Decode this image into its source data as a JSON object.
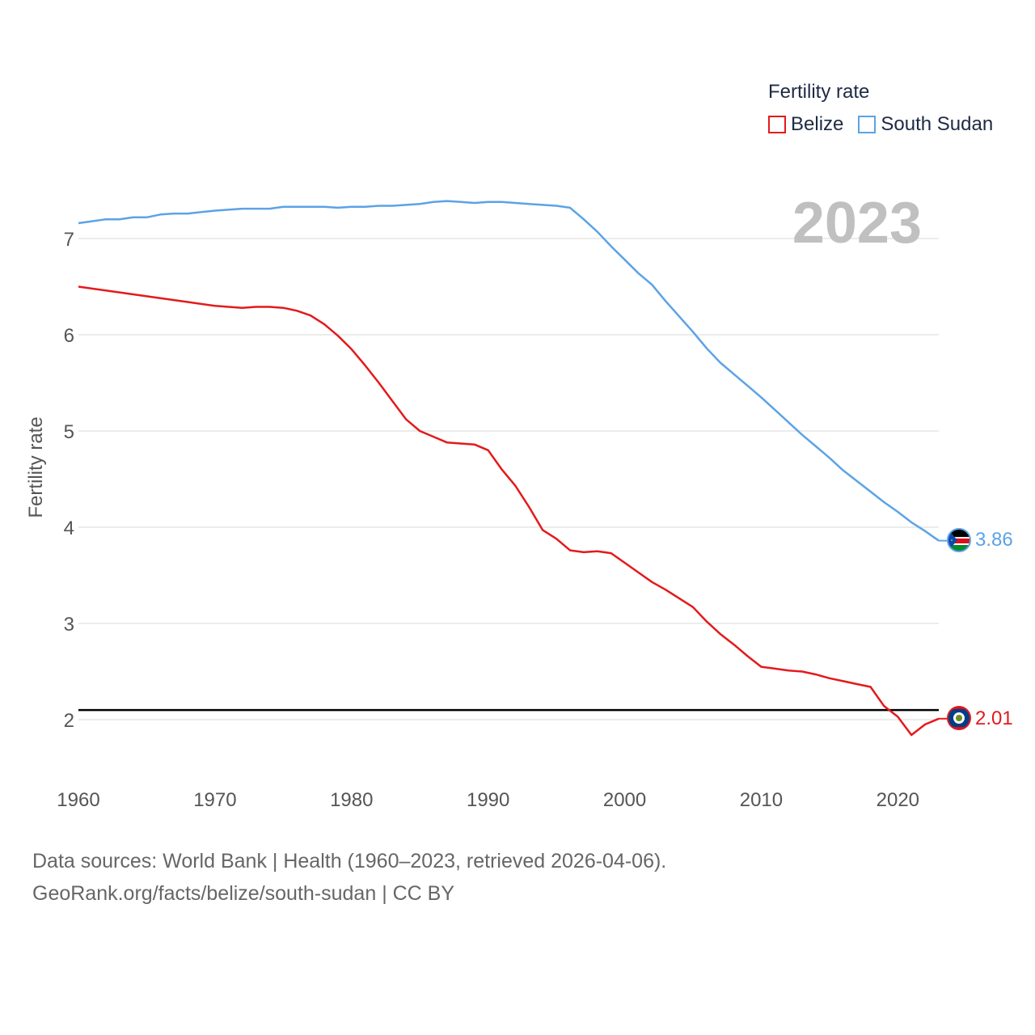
{
  "chart_data": {
    "type": "line",
    "ylabel": "Fertility rate",
    "xlim": [
      1960,
      2023
    ],
    "ylim": [
      1.5,
      7.5
    ],
    "y_ticks": [
      2,
      3,
      4,
      5,
      6,
      7
    ],
    "x_ticks": [
      1960,
      1970,
      1980,
      1990,
      2000,
      2010,
      2020
    ],
    "year_display": "2023",
    "reference_line": {
      "value": 2.1,
      "color": "#000000"
    },
    "legend": {
      "title": "Fertility rate",
      "position": "top-right"
    },
    "series": [
      {
        "name": "Belize",
        "color": "#e31a1c",
        "end_label": "2.01",
        "x": [
          1960,
          1962,
          1964,
          1966,
          1968,
          1970,
          1972,
          1973,
          1974,
          1975,
          1976,
          1977,
          1978,
          1979,
          1980,
          1981,
          1982,
          1983,
          1984,
          1985,
          1986,
          1987,
          1988,
          1989,
          1990,
          1991,
          1992,
          1993,
          1994,
          1995,
          1996,
          1997,
          1998,
          1999,
          2000,
          2001,
          2002,
          2003,
          2004,
          2005,
          2006,
          2007,
          2008,
          2009,
          2010,
          2011,
          2012,
          2013,
          2014,
          2015,
          2016,
          2017,
          2018,
          2019,
          2020,
          2021,
          2022,
          2023
        ],
        "values": [
          6.5,
          6.46,
          6.42,
          6.38,
          6.34,
          6.3,
          6.28,
          6.29,
          6.29,
          6.28,
          6.25,
          6.2,
          6.11,
          5.99,
          5.85,
          5.68,
          5.5,
          5.31,
          5.12,
          5.0,
          4.94,
          4.88,
          4.87,
          4.86,
          4.8,
          4.6,
          4.43,
          4.21,
          3.97,
          3.88,
          3.76,
          3.74,
          3.75,
          3.73,
          3.63,
          3.53,
          3.43,
          3.35,
          3.26,
          3.17,
          3.02,
          2.89,
          2.78,
          2.66,
          2.55,
          2.53,
          2.51,
          2.5,
          2.47,
          2.43,
          2.4,
          2.37,
          2.34,
          2.14,
          2.03,
          1.84,
          1.95,
          2.01
        ]
      },
      {
        "name": "South Sudan",
        "color": "#5ba3e6",
        "end_label": "3.86",
        "x": [
          1960,
          1962,
          1963,
          1964,
          1965,
          1966,
          1967,
          1968,
          1970,
          1972,
          1974,
          1975,
          1976,
          1978,
          1979,
          1980,
          1981,
          1982,
          1983,
          1984,
          1985,
          1986,
          1987,
          1988,
          1989,
          1990,
          1991,
          1992,
          1993,
          1994,
          1995,
          1996,
          1997,
          1998,
          1999,
          2000,
          2001,
          2002,
          2003,
          2004,
          2005,
          2006,
          2007,
          2008,
          2009,
          2010,
          2011,
          2012,
          2013,
          2014,
          2015,
          2016,
          2017,
          2018,
          2019,
          2020,
          2021,
          2022,
          2023
        ],
        "values": [
          7.16,
          7.2,
          7.2,
          7.22,
          7.22,
          7.25,
          7.26,
          7.26,
          7.29,
          7.31,
          7.31,
          7.33,
          7.33,
          7.33,
          7.32,
          7.33,
          7.33,
          7.34,
          7.34,
          7.35,
          7.36,
          7.38,
          7.39,
          7.38,
          7.37,
          7.38,
          7.38,
          7.37,
          7.36,
          7.35,
          7.34,
          7.32,
          7.2,
          7.07,
          6.92,
          6.78,
          6.64,
          6.52,
          6.35,
          6.19,
          6.03,
          5.86,
          5.71,
          5.59,
          5.47,
          5.35,
          5.22,
          5.09,
          4.96,
          4.84,
          4.72,
          4.59,
          4.48,
          4.37,
          4.26,
          4.16,
          4.05,
          3.96,
          3.86
        ]
      }
    ]
  },
  "footer": {
    "line1": "Data sources: World Bank | Health (1960–2023, retrieved 2026-04-06).",
    "line2": "GeoRank.org/facts/belize/south-sudan | CC BY"
  },
  "icons": {
    "belize_flag": "belize-flag-icon",
    "south_sudan_flag": "south-sudan-flag-icon"
  }
}
